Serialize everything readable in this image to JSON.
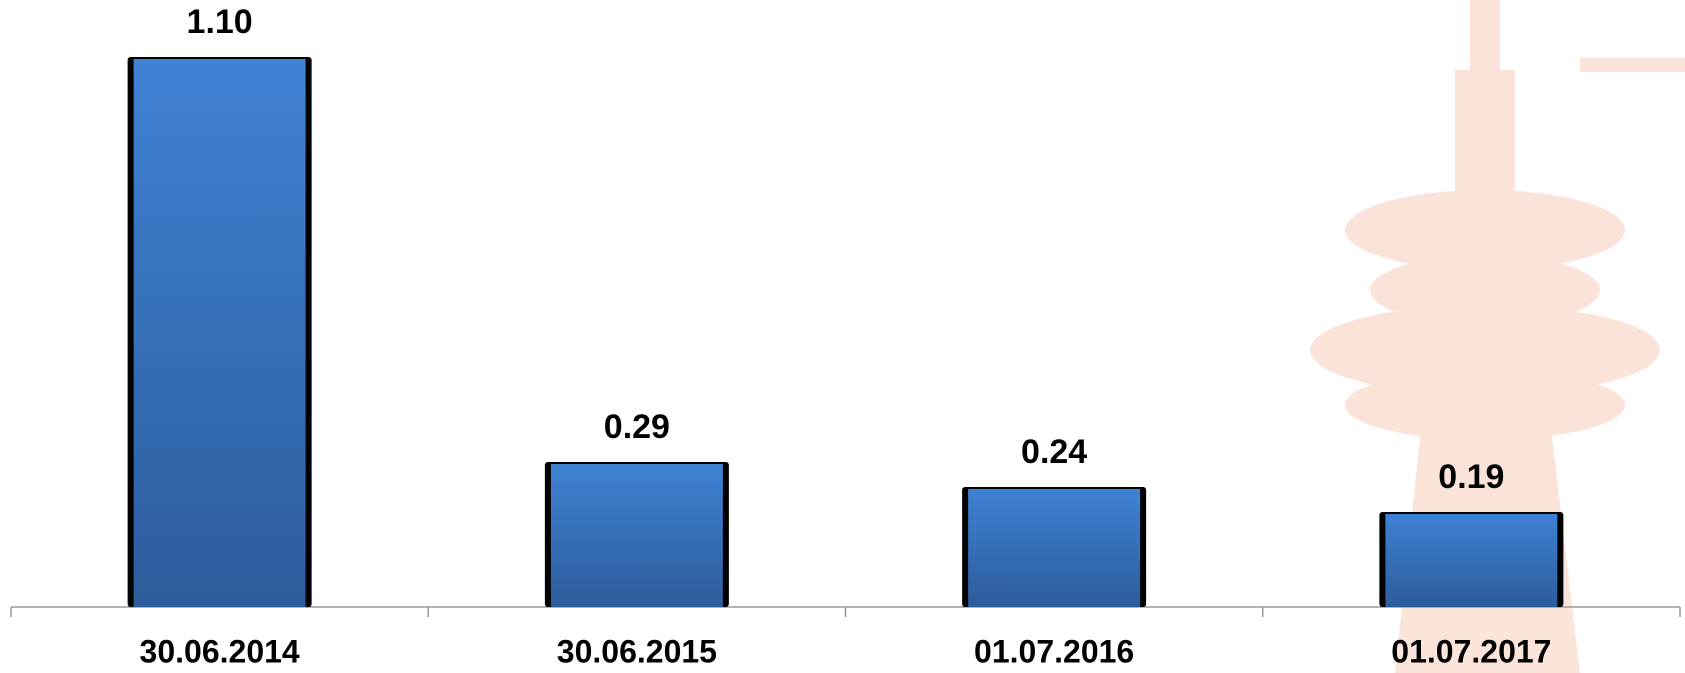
{
  "chart_data": {
    "type": "bar",
    "categories": [
      "30.06.2014",
      "30.06.2015",
      "01.07.2016",
      "01.07.2017"
    ],
    "values": [
      1.1,
      0.29,
      0.24,
      0.19
    ],
    "value_labels": [
      "1.10",
      "0.29",
      "0.24",
      "0.19"
    ],
    "color": "#3a78c6"
  }
}
